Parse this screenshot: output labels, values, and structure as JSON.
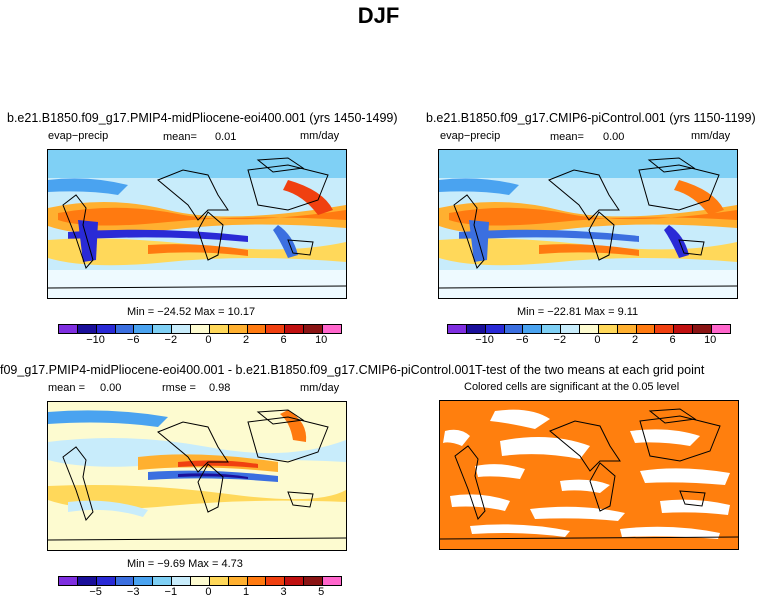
{
  "page_title": "DJF",
  "panels": {
    "top_left": {
      "title": "b.e21.B1850.f09_g17.PMIP4-midPliocene-eoi400.001 (yrs 1450-1499)",
      "variable": "evap−precip",
      "mean_label": "mean=",
      "mean_value": "0.01",
      "units": "mm/day",
      "min_max": "Min = −24.52  Max =   10.17"
    },
    "top_right": {
      "title": "b.e21.B1850.f09_g17.CMIP6-piControl.001 (yrs 1150-1199)",
      "variable": "evap−precip",
      "mean_label": "mean=",
      "mean_value": "0.00",
      "units": "mm/day",
      "min_max": "Min = −22.81  Max =    9.11"
    },
    "bottom_left": {
      "title": "f09_g17.PMIP4-midPliocene-eoi400.001 - b.e21.B1850.f09_g17.CMIP6-piControl.001",
      "mean_label": "mean =",
      "mean_value": "0.00",
      "rmse_label": "rmse =",
      "rmse_value": "0.98",
      "units": "mm/day",
      "min_max": "Min =   −9.69  Max =    4.73"
    },
    "bottom_right": {
      "title": "T-test of the two means at each grid point",
      "subtitle": "Colored cells are significant at the 0.05 level"
    }
  },
  "colorbars": {
    "main": {
      "colors": [
        "#7f2fe0",
        "#1a0f9a",
        "#2a2ad6",
        "#3b6fe0",
        "#4aa3f0",
        "#7fd0f5",
        "#c8ecfb",
        "#fdfbd0",
        "#ffd85a",
        "#ffb030",
        "#ff7a10",
        "#f04010",
        "#c01010",
        "#8a1414",
        "#ff66cc"
      ],
      "ticks": [
        "−10",
        "−6",
        "−2",
        "0",
        "2",
        "6",
        "10"
      ]
    },
    "diff": {
      "colors": [
        "#7f2fe0",
        "#1a0f9a",
        "#2a2ad6",
        "#3b6fe0",
        "#4aa3f0",
        "#7fd0f5",
        "#c8ecfb",
        "#fdfbd0",
        "#ffd85a",
        "#ffb030",
        "#ff7a10",
        "#f04010",
        "#c01010",
        "#8a1414",
        "#ff66cc"
      ],
      "ticks": [
        "−5",
        "−3",
        "−1",
        "0",
        "1",
        "3",
        "5"
      ]
    }
  },
  "colors": {
    "significance": "#ff7f0e",
    "land_outline": "#000000"
  }
}
